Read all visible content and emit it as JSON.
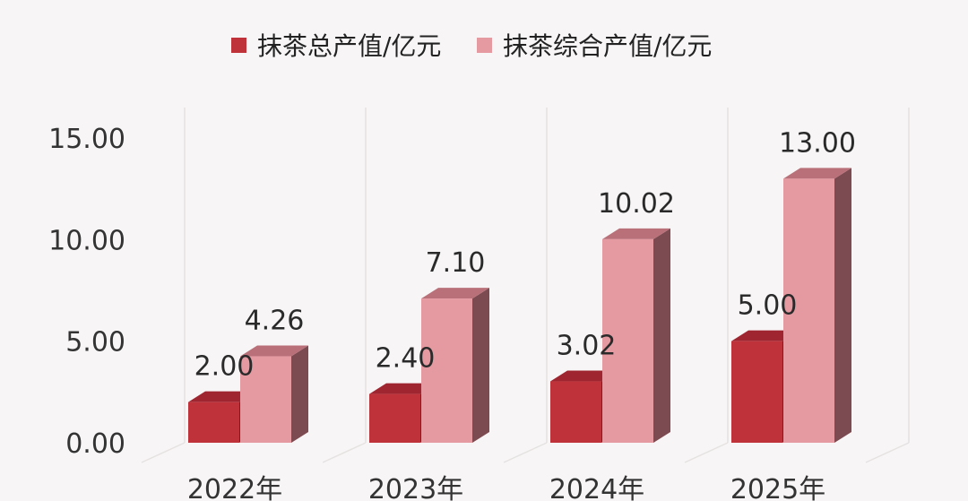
{
  "chart_data": {
    "type": "bar",
    "categories": [
      "2022年",
      "2023年",
      "2024年",
      "2025年"
    ],
    "series": [
      {
        "name": "抹茶总产值/亿元",
        "values": [
          2.0,
          2.4,
          3.02,
          5.0
        ],
        "labels": [
          "2.00",
          "2.40",
          "3.02",
          "5.00"
        ]
      },
      {
        "name": "抹茶综合产值/亿元",
        "values": [
          4.26,
          7.1,
          10.02,
          13.0
        ],
        "labels": [
          "4.26",
          "7.10",
          "10.02",
          "13.00"
        ]
      }
    ],
    "yticks": [
      "0.00",
      "5.00",
      "10.00",
      "15.00"
    ],
    "ylim": [
      0,
      15
    ],
    "grid": true,
    "legend_position": "top-center",
    "colors": {
      "series1_front": "#c0323a",
      "series1_top": "#9f2530",
      "series1_side": "#7d1c24",
      "series2_front": "#e59aa2",
      "series2_top": "#b97079",
      "series2_side": "#7c4a51"
    }
  }
}
